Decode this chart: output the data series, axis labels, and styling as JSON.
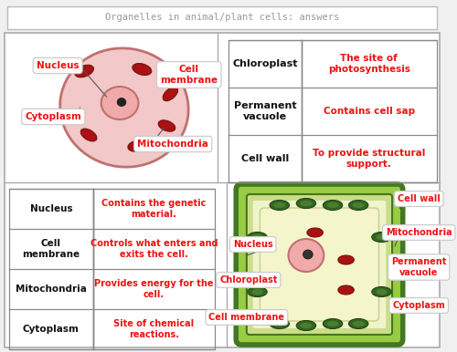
{
  "title": "Organelles in animal/plant cells: answers",
  "bg_color": "#f0f0f0",
  "panel_bg": "#ffffff",
  "red_color": "#ee1111",
  "black_color": "#111111",
  "gray_color": "#888888",
  "top_table_rows": [
    {
      "label": "Chloroplast",
      "desc": "The site of\nphotosynthesis"
    },
    {
      "label": "Permanent\nvacuole",
      "desc": "Contains cell sap"
    },
    {
      "label": "Cell wall",
      "desc": "To provide structural\nsupport."
    }
  ],
  "bottom_table_rows": [
    {
      "label": "Nucleus",
      "desc": "Contains the genetic\nmaterial."
    },
    {
      "label": "Cell\nmembrane",
      "desc": "Controls what enters and\nexits the cell."
    },
    {
      "label": "Mitochondria",
      "desc": "Provides energy for the\ncell."
    },
    {
      "label": "Cytoplasm",
      "desc": "Site of chemical\nreactions."
    }
  ],
  "cell_pink_fill": "#f2c8c8",
  "cell_pink_edge": "#c07070",
  "nuc_fill": "#f0aaaa",
  "mito_fill": "#aa1111",
  "mito_edge": "#771111",
  "plant_wall_fill": "#99cc44",
  "plant_wall_edge": "#447722",
  "plant_inner_fill": "#ccdd88",
  "plant_cyto_fill": "#eef5cc",
  "plant_vacuole_fill": "#f5f5cc",
  "plant_vacuole_edge": "#cccc88",
  "chloro_fill": "#336622",
  "chloro_edge": "#224411",
  "chloro_stripe": "#558833"
}
